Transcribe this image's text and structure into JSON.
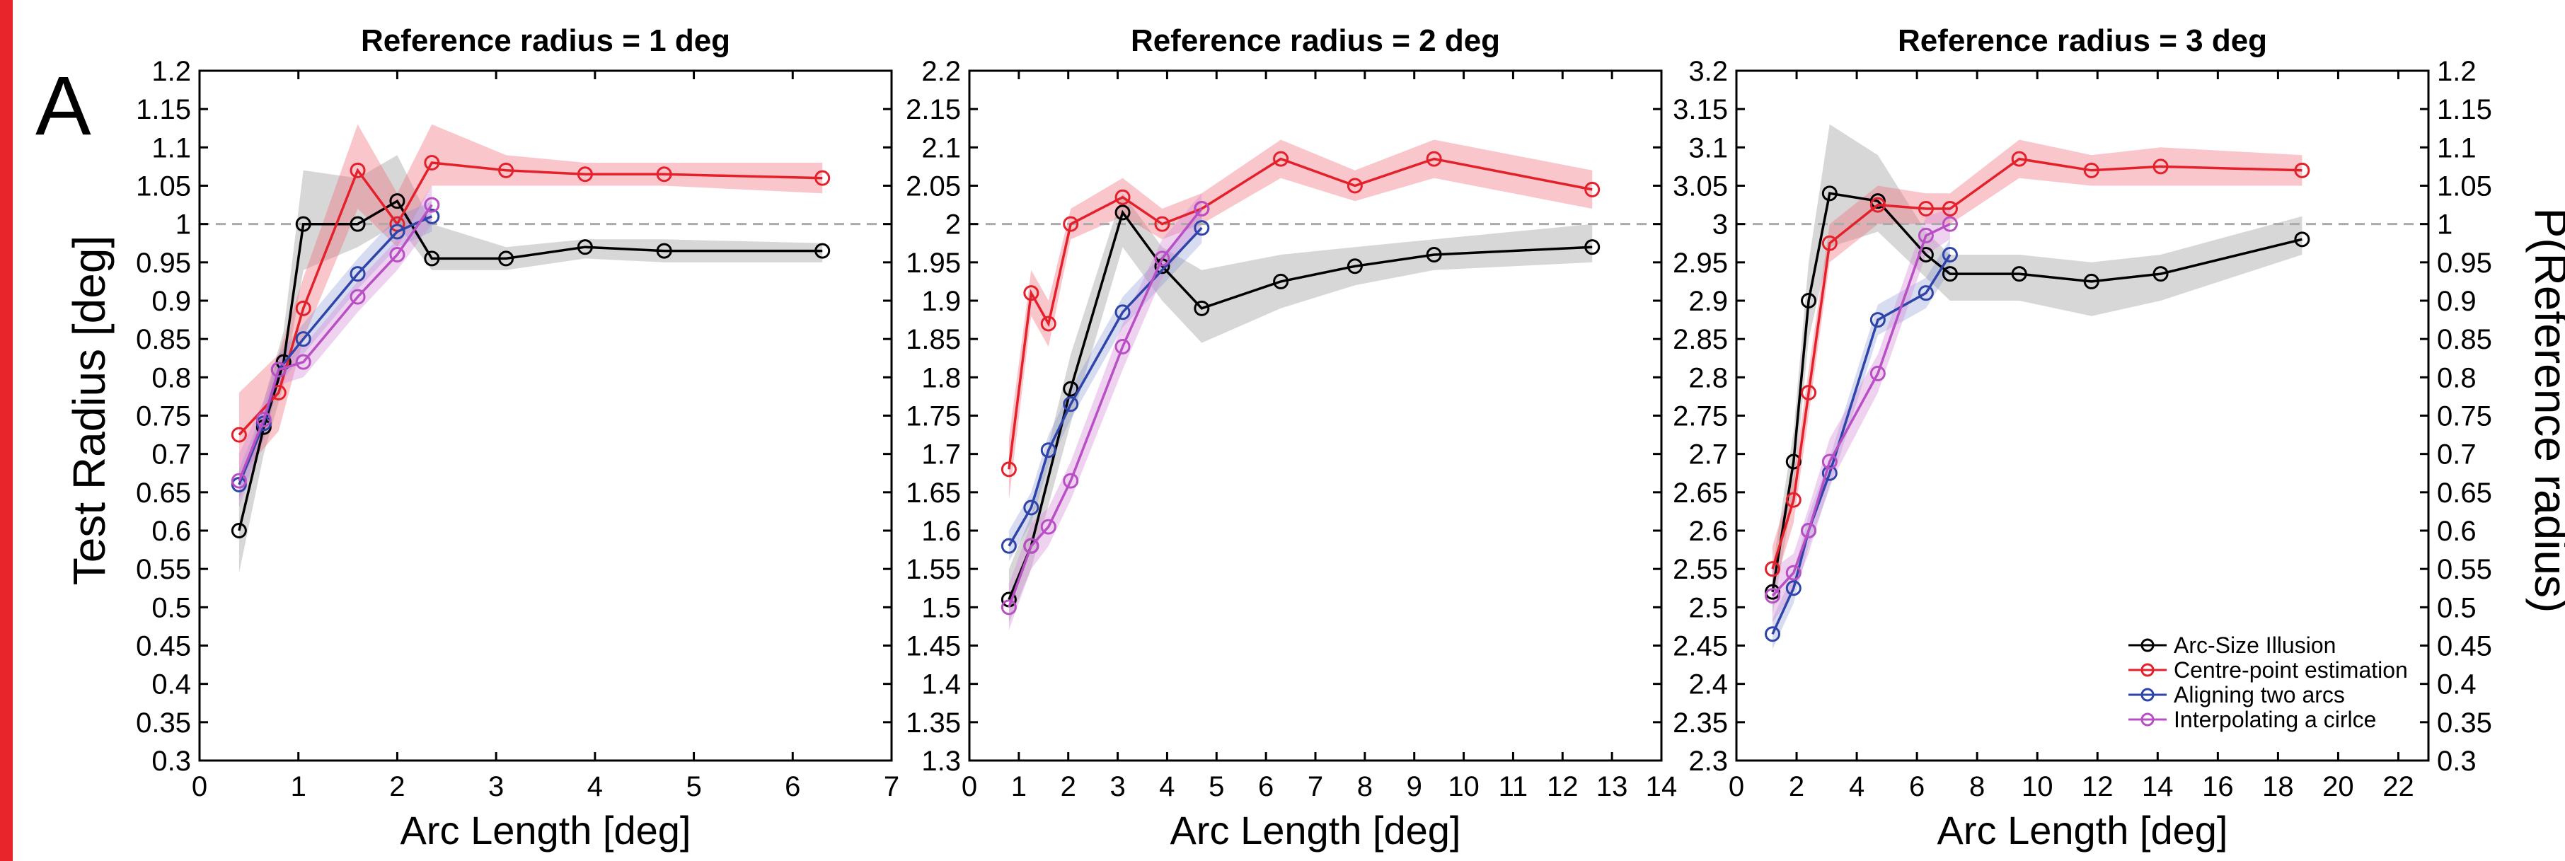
{
  "panel_letter": "A",
  "colors": {
    "stripe": "#e8252a",
    "black": "#000000",
    "red": "#e4202b",
    "blue": "#2f44a8",
    "magenta": "#b84fc4",
    "ref_line": "#aaaaaa"
  },
  "ylabel_left": "Test Radius [deg]",
  "ylabel_right": "P(Reference radius)",
  "legend": {
    "position": "bottom-right of panel 3",
    "entries": [
      {
        "label": "Arc-Size Illusion",
        "color": "#000000"
      },
      {
        "label": "Centre-point estimation",
        "color": "#e4202b"
      },
      {
        "label": "Aligning two arcs",
        "color": "#2f44a8"
      },
      {
        "label": "Interpolating a cirlce",
        "color": "#b84fc4"
      }
    ]
  },
  "chart_data": [
    {
      "type": "line",
      "title": "Reference radius = 1 deg",
      "xlabel": "Arc Length [deg]",
      "ylabel": "Test Radius [deg]",
      "xlim": [
        0,
        7
      ],
      "ylim": [
        0.3,
        1.2
      ],
      "xticks": [
        "0",
        "1",
        "2",
        "3",
        "4",
        "5",
        "6",
        "7"
      ],
      "yticks": [
        "0.3",
        "0.35",
        "0.4",
        "0.45",
        "0.5",
        "0.55",
        "0.6",
        "0.65",
        "0.7",
        "0.75",
        "0.8",
        "0.85",
        "0.9",
        "0.95",
        "1",
        "1.05",
        "1.1",
        "1.15",
        "1.2"
      ],
      "reference_line": 1,
      "grid": false,
      "series": [
        {
          "name": "Arc-Size Illusion",
          "x": [
            0.4,
            0.65,
            0.85,
            1.05,
            1.6,
            2.0,
            2.35,
            3.1,
            3.9,
            4.7,
            6.3
          ],
          "y": [
            0.6,
            0.735,
            0.82,
            1.0,
            1.0,
            1.03,
            0.955,
            0.955,
            0.97,
            0.965,
            0.965
          ],
          "lo": [
            0.545,
            0.7,
            0.79,
            0.94,
            0.97,
            1.0,
            0.94,
            0.94,
            0.955,
            0.95,
            0.95
          ],
          "hi": [
            0.65,
            0.77,
            0.86,
            1.07,
            1.06,
            1.09,
            1.0,
            0.97,
            0.98,
            0.98,
            0.975
          ]
        },
        {
          "name": "Centre-point estimation",
          "x": [
            0.4,
            0.8,
            1.05,
            1.6,
            2.0,
            2.35,
            3.1,
            3.9,
            4.7,
            6.3
          ],
          "y": [
            0.725,
            0.78,
            0.89,
            1.07,
            1.0,
            1.08,
            1.07,
            1.065,
            1.065,
            1.06
          ],
          "lo": [
            0.67,
            0.73,
            0.85,
            1.02,
            0.97,
            1.05,
            1.05,
            1.05,
            1.05,
            1.04
          ],
          "hi": [
            0.78,
            0.83,
            0.93,
            1.13,
            1.04,
            1.13,
            1.09,
            1.08,
            1.08,
            1.08
          ]
        },
        {
          "name": "Aligning two arcs",
          "x": [
            0.4,
            0.65,
            0.8,
            1.05,
            1.6,
            2.0,
            2.35
          ],
          "y": [
            0.66,
            0.74,
            0.81,
            0.85,
            0.935,
            0.99,
            1.01
          ],
          "lo": [
            0.64,
            0.72,
            0.79,
            0.83,
            0.915,
            0.97,
            0.99
          ],
          "hi": [
            0.68,
            0.76,
            0.83,
            0.87,
            0.955,
            1.01,
            1.03
          ]
        },
        {
          "name": "Interpolating a cirlce",
          "x": [
            0.4,
            0.65,
            0.8,
            1.05,
            1.6,
            2.0,
            2.35
          ],
          "y": [
            0.665,
            0.745,
            0.81,
            0.82,
            0.905,
            0.96,
            1.025
          ],
          "lo": [
            0.63,
            0.72,
            0.79,
            0.8,
            0.885,
            0.94,
            1.0
          ],
          "hi": [
            0.7,
            0.77,
            0.83,
            0.84,
            0.925,
            0.98,
            1.05
          ]
        }
      ]
    },
    {
      "type": "line",
      "title": "Reference radius = 2 deg",
      "xlabel": "Arc Length [deg]",
      "ylabel": "",
      "xlim": [
        0,
        14
      ],
      "ylim": [
        1.3,
        2.2
      ],
      "xticks": [
        "0",
        "1",
        "2",
        "3",
        "4",
        "5",
        "6",
        "7",
        "8",
        "9",
        "10",
        "11",
        "12",
        "13",
        "14"
      ],
      "yticks": [
        "1.3",
        "1.35",
        "1.4",
        "1.45",
        "1.5",
        "1.55",
        "1.6",
        "1.65",
        "1.7",
        "1.75",
        "1.8",
        "1.85",
        "1.9",
        "1.95",
        "2",
        "2.05",
        "2.1",
        "2.15",
        "2.2"
      ],
      "reference_line": 2,
      "grid": false,
      "series": [
        {
          "name": "Arc-Size Illusion",
          "x": [
            0.8,
            1.25,
            2.05,
            3.1,
            3.9,
            4.7,
            6.3,
            7.8,
            9.4,
            12.6
          ],
          "y": [
            1.51,
            1.58,
            1.785,
            2.015,
            1.945,
            1.89,
            1.925,
            1.945,
            1.96,
            1.97
          ],
          "lo": [
            1.48,
            1.55,
            1.74,
            1.97,
            1.9,
            1.845,
            1.89,
            1.92,
            1.94,
            1.95
          ],
          "hi": [
            1.55,
            1.62,
            1.83,
            2.04,
            1.97,
            1.94,
            1.96,
            1.97,
            1.98,
            2.0
          ]
        },
        {
          "name": "Centre-point estimation",
          "x": [
            0.8,
            1.25,
            1.6,
            2.05,
            3.1,
            3.9,
            4.7,
            6.3,
            7.8,
            9.4,
            12.6
          ],
          "y": [
            1.68,
            1.91,
            1.87,
            2.0,
            2.035,
            2.0,
            2.02,
            2.085,
            2.05,
            2.085,
            2.045
          ],
          "lo": [
            1.64,
            1.88,
            1.84,
            1.98,
            2.01,
            1.98,
            2.0,
            2.06,
            2.03,
            2.06,
            2.02
          ],
          "hi": [
            1.72,
            1.94,
            1.9,
            2.02,
            2.06,
            2.02,
            2.04,
            2.11,
            2.07,
            2.11,
            2.07
          ]
        },
        {
          "name": "Aligning two arcs",
          "x": [
            0.8,
            1.25,
            1.6,
            2.05,
            3.1,
            4.7
          ],
          "y": [
            1.58,
            1.63,
            1.705,
            1.765,
            1.885,
            1.995
          ],
          "lo": [
            1.56,
            1.61,
            1.685,
            1.745,
            1.865,
            1.975
          ],
          "hi": [
            1.6,
            1.65,
            1.725,
            1.785,
            1.905,
            2.015
          ]
        },
        {
          "name": "Interpolating a cirlce",
          "x": [
            0.8,
            1.25,
            1.6,
            2.05,
            3.1,
            3.9,
            4.7
          ],
          "y": [
            1.5,
            1.58,
            1.605,
            1.665,
            1.84,
            1.955,
            2.02
          ],
          "lo": [
            1.47,
            1.55,
            1.58,
            1.64,
            1.81,
            1.93,
            2.0
          ],
          "hi": [
            1.53,
            1.61,
            1.63,
            1.69,
            1.87,
            1.98,
            2.04
          ]
        }
      ]
    },
    {
      "type": "line",
      "title": "Reference radius = 3 deg",
      "xlabel": "Arc Length [deg]",
      "ylabel": "P(Reference radius)",
      "xlim": [
        0,
        23
      ],
      "ylim": [
        2.3,
        3.2
      ],
      "xticks": [
        "0",
        "2",
        "4",
        "6",
        "8",
        "10",
        "12",
        "14",
        "16",
        "18",
        "20",
        "22"
      ],
      "yticks": [
        "2.3",
        "2.35",
        "2.4",
        "2.45",
        "2.5",
        "2.55",
        "2.6",
        "2.65",
        "2.7",
        "2.75",
        "2.8",
        "2.85",
        "2.9",
        "2.95",
        "3",
        "3.05",
        "3.1",
        "3.15",
        "3.2"
      ],
      "yticks_right": [
        "0.3",
        "0.35",
        "0.4",
        "0.45",
        "0.5",
        "0.55",
        "0.6",
        "0.65",
        "0.7",
        "0.75",
        "0.8",
        "0.85",
        "0.9",
        "0.95",
        "1",
        "1.05",
        "1.1",
        "1.15",
        "1.2"
      ],
      "reference_line": 3,
      "grid": false,
      "series": [
        {
          "name": "Arc-Size Illusion",
          "x": [
            1.2,
            1.9,
            2.4,
            3.1,
            4.7,
            6.3,
            7.1,
            9.4,
            11.8,
            14.1,
            18.8
          ],
          "y": [
            2.52,
            2.69,
            2.9,
            3.04,
            3.03,
            2.96,
            2.935,
            2.935,
            2.925,
            2.935,
            2.98
          ],
          "lo": [
            2.49,
            2.65,
            2.85,
            2.97,
            2.99,
            2.93,
            2.9,
            2.9,
            2.88,
            2.9,
            2.96
          ],
          "hi": [
            2.55,
            2.73,
            2.95,
            3.13,
            3.09,
            2.99,
            2.96,
            2.96,
            2.95,
            2.96,
            3.01
          ]
        },
        {
          "name": "Centre-point estimation",
          "x": [
            1.2,
            1.9,
            2.4,
            3.1,
            4.7,
            6.3,
            7.1,
            9.4,
            11.8,
            14.1,
            18.8
          ],
          "y": [
            2.55,
            2.64,
            2.78,
            2.975,
            3.025,
            3.02,
            3.02,
            3.085,
            3.07,
            3.075,
            3.07
          ],
          "lo": [
            2.52,
            2.61,
            2.75,
            2.95,
            3.0,
            3.0,
            3.0,
            3.06,
            3.05,
            3.05,
            3.05
          ],
          "hi": [
            2.58,
            2.67,
            2.81,
            3.0,
            3.05,
            3.04,
            3.04,
            3.11,
            3.09,
            3.1,
            3.09
          ]
        },
        {
          "name": "Aligning two arcs",
          "x": [
            1.2,
            1.9,
            2.4,
            3.1,
            4.7,
            6.3,
            7.1
          ],
          "y": [
            2.465,
            2.525,
            2.6,
            2.675,
            2.875,
            2.91,
            2.96
          ],
          "lo": [
            2.445,
            2.505,
            2.58,
            2.655,
            2.855,
            2.89,
            2.94
          ],
          "hi": [
            2.485,
            2.545,
            2.62,
            2.695,
            2.895,
            2.93,
            2.98
          ]
        },
        {
          "name": "Interpolating a cirlce",
          "x": [
            1.2,
            1.9,
            2.4,
            3.1,
            4.7,
            6.3,
            7.1
          ],
          "y": [
            2.515,
            2.545,
            2.6,
            2.69,
            2.805,
            2.985,
            3.0
          ],
          "lo": [
            2.48,
            2.52,
            2.57,
            2.66,
            2.78,
            2.96,
            2.98
          ],
          "hi": [
            2.55,
            2.57,
            2.63,
            2.72,
            2.83,
            3.01,
            3.02
          ]
        }
      ]
    }
  ]
}
